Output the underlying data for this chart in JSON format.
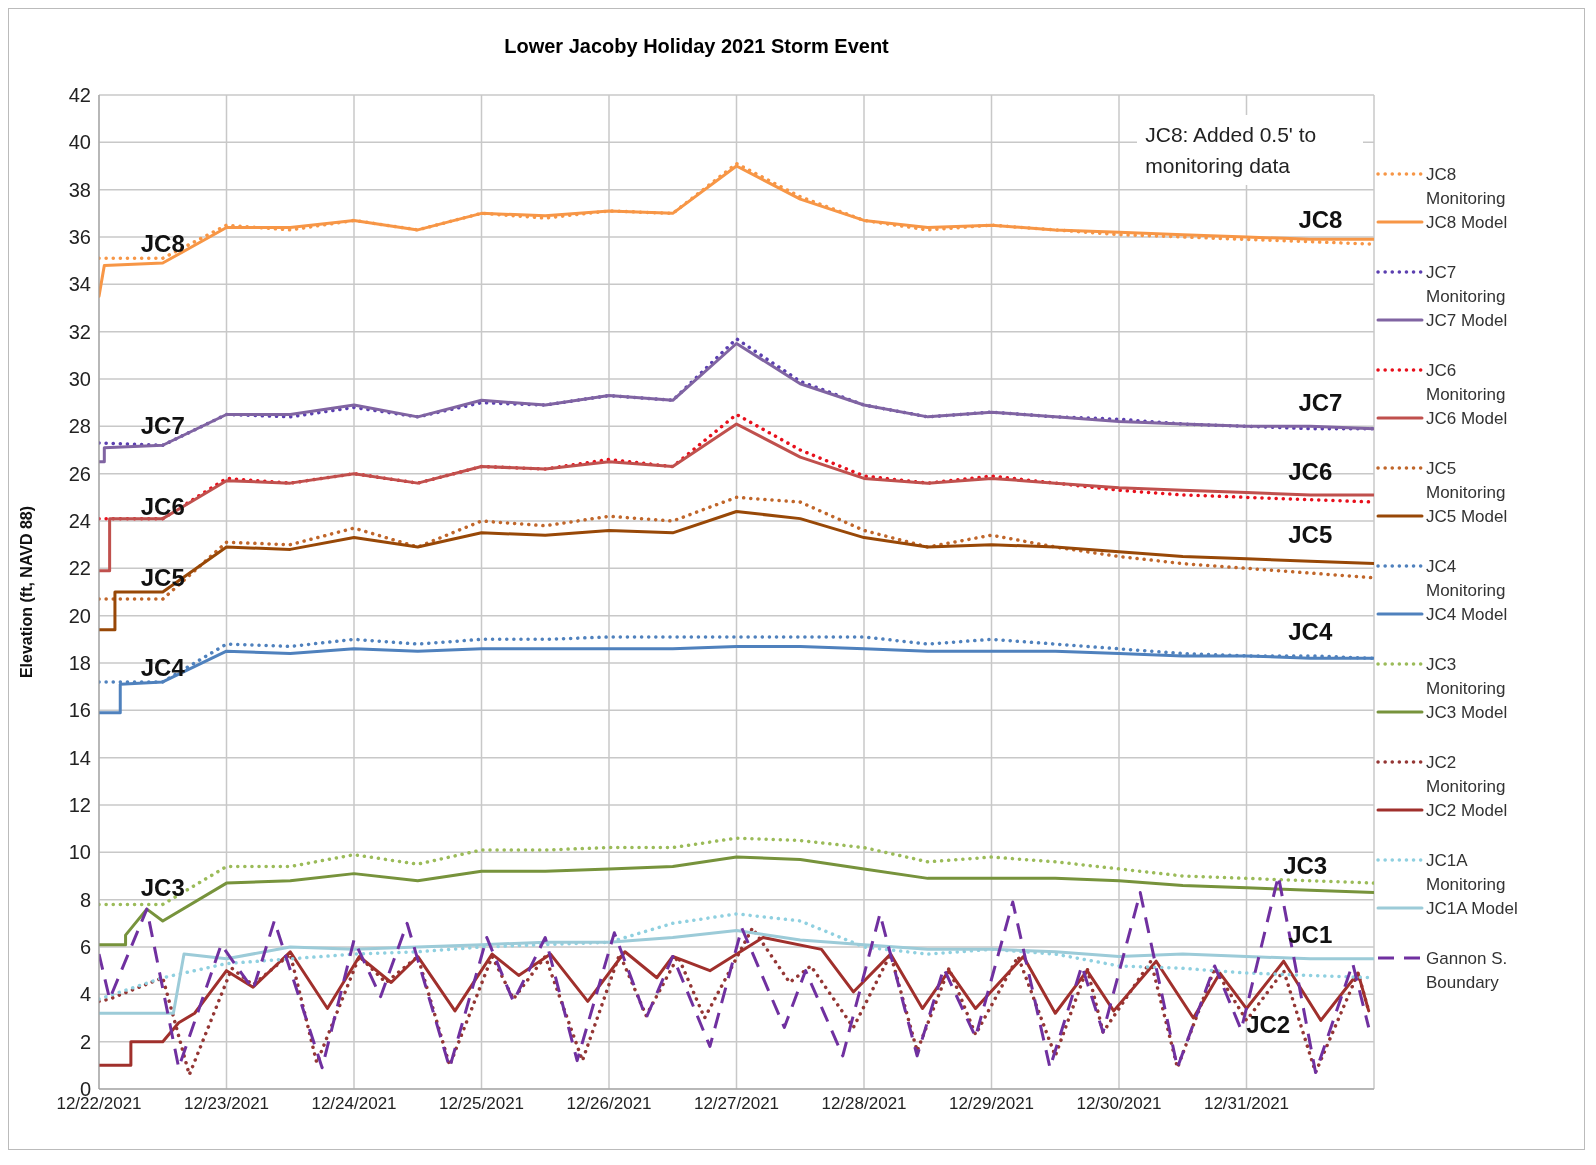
{
  "chart_data": {
    "type": "line",
    "title": "Lower Jacoby Holiday 2021 Storm Event",
    "ylabel": "Elevation (ft, NAVD 88)",
    "x": [
      "2021-12-22T00:00",
      "2021-12-22T12:00",
      "2021-12-23T00:00",
      "2021-12-23T12:00",
      "2021-12-24T00:00",
      "2021-12-24T12:00",
      "2021-12-25T00:00",
      "2021-12-25T12:00",
      "2021-12-26T00:00",
      "2021-12-26T12:00",
      "2021-12-27T00:00",
      "2021-12-27T12:00",
      "2021-12-28T00:00",
      "2021-12-28T12:00",
      "2021-12-29T00:00",
      "2021-12-29T12:00",
      "2021-12-30T00:00",
      "2021-12-30T12:00",
      "2021-12-31T00:00",
      "2021-12-31T12:00",
      "2022-01-01T00:00"
    ],
    "xlim": [
      "2021-12-22T00:00",
      "2022-01-01T00:00"
    ],
    "xticks": [
      {
        "value": "2021-12-22",
        "label": "12/22/2021"
      },
      {
        "value": "2021-12-23",
        "label": "12/23/2021"
      },
      {
        "value": "2021-12-24",
        "label": "12/24/2021"
      },
      {
        "value": "2021-12-25",
        "label": "12/25/2021"
      },
      {
        "value": "2021-12-26",
        "label": "12/26/2021"
      },
      {
        "value": "2021-12-27",
        "label": "12/27/2021"
      },
      {
        "value": "2021-12-28",
        "label": "12/28/2021"
      },
      {
        "value": "2021-12-29",
        "label": "12/29/2021"
      },
      {
        "value": "2021-12-30",
        "label": "12/30/2021"
      },
      {
        "value": "2021-12-31",
        "label": "12/31/2021"
      }
    ],
    "ylim": [
      0,
      42
    ],
    "yticks": [
      0,
      2,
      4,
      6,
      8,
      10,
      12,
      14,
      16,
      18,
      20,
      22,
      24,
      26,
      28,
      30,
      32,
      34,
      36,
      38,
      40,
      42
    ],
    "grid": true,
    "legend": "right",
    "marker": "none",
    "series": [
      {
        "name": "JC8 Monitoring",
        "color": "#f79646",
        "line_style": "dotted",
        "values": [
          35.1,
          35.1,
          36.5,
          36.3,
          36.7,
          36.3,
          37.0,
          36.8,
          37.1,
          37.0,
          39.1,
          37.7,
          36.7,
          36.3,
          36.5,
          36.3,
          36.1,
          36.0,
          35.9,
          35.8,
          35.7
        ]
      },
      {
        "name": "JC8 Model",
        "color": "#f79646",
        "line_style": "solid",
        "x": [
          "2021-12-22T00:00",
          "2021-12-22T01:00",
          "2021-12-22T12:00",
          "2021-12-23T00:00",
          "2021-12-23T12:00",
          "2021-12-24T00:00",
          "2021-12-24T12:00",
          "2021-12-25T00:00",
          "2021-12-25T12:00",
          "2021-12-26T00:00",
          "2021-12-26T12:00",
          "2021-12-27T00:00",
          "2021-12-27T12:00",
          "2021-12-28T00:00",
          "2021-12-28T12:00",
          "2021-12-29T00:00",
          "2021-12-29T12:00",
          "2021-12-30T00:00",
          "2021-12-30T12:00",
          "2021-12-31T00:00",
          "2021-12-31T12:00",
          "2022-01-01T00:00"
        ],
        "values": [
          33.5,
          34.8,
          34.9,
          36.4,
          36.4,
          36.7,
          36.3,
          37.0,
          36.9,
          37.1,
          37.0,
          39.0,
          37.6,
          36.7,
          36.4,
          36.5,
          36.3,
          36.2,
          36.1,
          36.0,
          35.9,
          35.9
        ]
      },
      {
        "name": "JC7 Monitoring",
        "color": "#5b3fb0",
        "line_style": "dotted",
        "values": [
          27.3,
          27.2,
          28.5,
          28.4,
          28.8,
          28.4,
          29.0,
          28.9,
          29.3,
          29.1,
          31.7,
          29.9,
          28.9,
          28.4,
          28.6,
          28.4,
          28.3,
          28.1,
          28.0,
          27.9,
          27.9
        ]
      },
      {
        "name": "JC7 Model",
        "color": "#8064a2",
        "line_style": "solid",
        "x": [
          "2021-12-22T00:00",
          "2021-12-22T01:00",
          "2021-12-22T01:00",
          "2021-12-22T12:00",
          "2021-12-23T00:00",
          "2021-12-23T12:00",
          "2021-12-24T00:00",
          "2021-12-24T12:00",
          "2021-12-25T00:00",
          "2021-12-25T12:00",
          "2021-12-26T00:00",
          "2021-12-26T12:00",
          "2021-12-27T00:00",
          "2021-12-27T12:00",
          "2021-12-28T00:00",
          "2021-12-28T12:00",
          "2021-12-29T00:00",
          "2021-12-29T12:00",
          "2021-12-30T00:00",
          "2021-12-30T12:00",
          "2021-12-31T00:00",
          "2021-12-31T12:00",
          "2022-01-01T00:00"
        ],
        "values": [
          26.5,
          26.5,
          27.1,
          27.2,
          28.5,
          28.5,
          28.9,
          28.4,
          29.1,
          28.9,
          29.3,
          29.1,
          31.5,
          29.8,
          28.9,
          28.4,
          28.6,
          28.4,
          28.2,
          28.1,
          28.0,
          28.0,
          27.9
        ]
      },
      {
        "name": "JC6 Monitoring",
        "color": "#e8101c",
        "line_style": "dotted",
        "values": [
          24.1,
          24.1,
          25.8,
          25.6,
          26.0,
          25.6,
          26.3,
          26.2,
          26.6,
          26.3,
          28.5,
          27.0,
          25.9,
          25.6,
          25.9,
          25.6,
          25.3,
          25.1,
          25.0,
          24.9,
          24.8
        ]
      },
      {
        "name": "JC6 Model",
        "color": "#c0504d",
        "line_style": "solid",
        "x": [
          "2021-12-22T00:00",
          "2021-12-22T02:00",
          "2021-12-22T02:00",
          "2021-12-22T12:00",
          "2021-12-23T00:00",
          "2021-12-23T12:00",
          "2021-12-24T00:00",
          "2021-12-24T12:00",
          "2021-12-25T00:00",
          "2021-12-25T12:00",
          "2021-12-26T00:00",
          "2021-12-26T12:00",
          "2021-12-27T00:00",
          "2021-12-27T12:00",
          "2021-12-28T00:00",
          "2021-12-28T12:00",
          "2021-12-29T00:00",
          "2021-12-29T12:00",
          "2021-12-30T00:00",
          "2021-12-30T12:00",
          "2021-12-31T00:00",
          "2021-12-31T12:00",
          "2022-01-01T00:00"
        ],
        "values": [
          21.9,
          21.9,
          24.1,
          24.1,
          25.7,
          25.6,
          26.0,
          25.6,
          26.3,
          26.2,
          26.5,
          26.3,
          28.1,
          26.7,
          25.8,
          25.6,
          25.8,
          25.6,
          25.4,
          25.3,
          25.2,
          25.1,
          25.1
        ]
      },
      {
        "name": "JC5 Monitoring",
        "color": "#c0662a",
        "line_style": "dotted",
        "values": [
          20.7,
          20.7,
          23.1,
          23.0,
          23.7,
          22.9,
          24.0,
          23.8,
          24.2,
          24.0,
          25.0,
          24.8,
          23.6,
          22.9,
          23.4,
          22.9,
          22.5,
          22.2,
          22.0,
          21.8,
          21.6
        ]
      },
      {
        "name": "JC5 Model",
        "color": "#984807",
        "line_style": "solid",
        "x": [
          "2021-12-22T00:00",
          "2021-12-22T03:00",
          "2021-12-22T03:00",
          "2021-12-22T12:00",
          "2021-12-23T00:00",
          "2021-12-23T12:00",
          "2021-12-24T00:00",
          "2021-12-24T12:00",
          "2021-12-25T00:00",
          "2021-12-25T12:00",
          "2021-12-26T00:00",
          "2021-12-26T12:00",
          "2021-12-27T00:00",
          "2021-12-27T12:00",
          "2021-12-28T00:00",
          "2021-12-28T12:00",
          "2021-12-29T00:00",
          "2021-12-29T12:00",
          "2021-12-30T00:00",
          "2021-12-30T12:00",
          "2021-12-31T00:00",
          "2021-12-31T12:00",
          "2022-01-01T00:00"
        ],
        "values": [
          19.4,
          19.4,
          21.0,
          21.0,
          22.9,
          22.8,
          23.3,
          22.9,
          23.5,
          23.4,
          23.6,
          23.5,
          24.4,
          24.1,
          23.3,
          22.9,
          23.0,
          22.9,
          22.7,
          22.5,
          22.4,
          22.3,
          22.2
        ]
      },
      {
        "name": "JC4 Monitoring",
        "color": "#4f81bd",
        "line_style": "dotted",
        "values": [
          17.2,
          17.2,
          18.8,
          18.7,
          19.0,
          18.8,
          19.0,
          19.0,
          19.1,
          19.1,
          19.1,
          19.1,
          19.1,
          18.8,
          19.0,
          18.8,
          18.6,
          18.4,
          18.3,
          18.3,
          18.2
        ]
      },
      {
        "name": "JC4 Model",
        "color": "#4f81bd",
        "line_style": "solid",
        "x": [
          "2021-12-22T00:00",
          "2021-12-22T04:00",
          "2021-12-22T04:00",
          "2021-12-22T12:00",
          "2021-12-23T00:00",
          "2021-12-23T12:00",
          "2021-12-24T00:00",
          "2021-12-24T12:00",
          "2021-12-25T00:00",
          "2021-12-25T12:00",
          "2021-12-26T00:00",
          "2021-12-26T12:00",
          "2021-12-27T00:00",
          "2021-12-27T12:00",
          "2021-12-28T00:00",
          "2021-12-28T12:00",
          "2021-12-29T00:00",
          "2021-12-29T12:00",
          "2021-12-30T00:00",
          "2021-12-30T12:00",
          "2021-12-31T00:00",
          "2021-12-31T12:00",
          "2022-01-01T00:00"
        ],
        "values": [
          15.9,
          15.9,
          17.1,
          17.2,
          18.5,
          18.4,
          18.6,
          18.5,
          18.6,
          18.6,
          18.6,
          18.6,
          18.7,
          18.7,
          18.6,
          18.5,
          18.5,
          18.5,
          18.4,
          18.3,
          18.3,
          18.2,
          18.2
        ]
      },
      {
        "name": "JC3 Monitoring",
        "color": "#9bbb59",
        "line_style": "dotted",
        "values": [
          7.8,
          7.8,
          9.4,
          9.4,
          9.9,
          9.5,
          10.1,
          10.1,
          10.2,
          10.2,
          10.6,
          10.5,
          10.2,
          9.6,
          9.8,
          9.6,
          9.3,
          9.0,
          8.9,
          8.8,
          8.7
        ]
      },
      {
        "name": "JC3 Model",
        "color": "#77933c",
        "line_style": "solid",
        "x": [
          "2021-12-22T00:00",
          "2021-12-22T05:00",
          "2021-12-22T05:00",
          "2021-12-22T09:00",
          "2021-12-22T12:00",
          "2021-12-23T00:00",
          "2021-12-23T12:00",
          "2021-12-24T00:00",
          "2021-12-24T12:00",
          "2021-12-25T00:00",
          "2021-12-25T12:00",
          "2021-12-26T00:00",
          "2021-12-26T12:00",
          "2021-12-27T00:00",
          "2021-12-27T12:00",
          "2021-12-28T00:00",
          "2021-12-28T12:00",
          "2021-12-29T00:00",
          "2021-12-29T12:00",
          "2021-12-30T00:00",
          "2021-12-30T12:00",
          "2021-12-31T00:00",
          "2021-12-31T12:00",
          "2022-01-01T00:00"
        ],
        "values": [
          6.1,
          6.1,
          6.5,
          7.6,
          7.1,
          8.7,
          8.8,
          9.1,
          8.8,
          9.2,
          9.2,
          9.3,
          9.4,
          9.8,
          9.7,
          9.3,
          8.9,
          8.9,
          8.9,
          8.8,
          8.6,
          8.5,
          8.4,
          8.3
        ]
      },
      {
        "name": "JC2 Monitoring",
        "color": "#943634",
        "line_style": "dotted",
        "x": [
          "2021-12-22T00:00",
          "2021-12-22T02:00",
          "2021-12-22T12:00",
          "2021-12-22T17:00",
          "2021-12-23T01:00",
          "2021-12-23T05:00",
          "2021-12-23T12:00",
          "2021-12-23T17:00",
          "2021-12-24T01:00",
          "2021-12-24T06:00",
          "2021-12-24T12:00",
          "2021-12-24T18:00",
          "2021-12-25T02:00",
          "2021-12-25T06:00",
          "2021-12-25T12:00",
          "2021-12-25T19:00",
          "2021-12-26T02:00",
          "2021-12-26T07:00",
          "2021-12-26T13:00",
          "2021-12-26T18:00",
          "2021-12-27T03:00",
          "2021-12-27T10:00",
          "2021-12-27T14:00",
          "2021-12-27T22:00",
          "2021-12-28T05:00",
          "2021-12-28T10:00",
          "2021-12-28T16:00",
          "2021-12-28T21:00",
          "2021-12-29T05:00",
          "2021-12-29T12:00",
          "2021-12-29T18:00",
          "2021-12-29T21:00",
          "2021-12-30T06:00",
          "2021-12-30T11:00",
          "2021-12-30T18:00",
          "2021-12-31T00:00",
          "2021-12-31T07:00",
          "2021-12-31T13:00",
          "2021-12-31T21:00",
          "2021-12-31T23:00"
        ],
        "values": [
          3.7,
          3.8,
          4.7,
          0.6,
          5.1,
          4.4,
          5.7,
          1.1,
          5.6,
          4.5,
          5.6,
          1.0,
          5.6,
          3.8,
          5.6,
          1.2,
          5.7,
          3.1,
          5.6,
          3.0,
          6.8,
          4.5,
          5.2,
          2.6,
          5.7,
          1.6,
          5.1,
          2.3,
          5.6,
          1.4,
          5.1,
          2.4,
          5.4,
          0.9,
          5.1,
          2.9,
          5.0,
          0.7,
          4.9,
          3.3
        ]
      },
      {
        "name": "JC2 Model",
        "color": "#a0302c",
        "line_style": "solid",
        "x": [
          "2021-12-22T00:00",
          "2021-12-22T06:00",
          "2021-12-22T06:00",
          "2021-12-22T12:00",
          "2021-12-22T15:00",
          "2021-12-22T18:00",
          "2021-12-23T00:00",
          "2021-12-23T05:00",
          "2021-12-23T12:00",
          "2021-12-23T19:00",
          "2021-12-24T01:00",
          "2021-12-24T07:00",
          "2021-12-24T12:00",
          "2021-12-24T19:00",
          "2021-12-25T02:00",
          "2021-12-25T07:00",
          "2021-12-25T13:00",
          "2021-12-25T20:00",
          "2021-12-26T03:00",
          "2021-12-26T09:00",
          "2021-12-26T12:00",
          "2021-12-26T19:00",
          "2021-12-27T05:00",
          "2021-12-27T16:00",
          "2021-12-27T22:00",
          "2021-12-28T05:00",
          "2021-12-28T11:00",
          "2021-12-28T16:00",
          "2021-12-28T21:00",
          "2021-12-29T06:00",
          "2021-12-29T12:00",
          "2021-12-29T18:00",
          "2021-12-29T23:00",
          "2021-12-30T07:00",
          "2021-12-30T14:00",
          "2021-12-30T19:00",
          "2021-12-31T00:00",
          "2021-12-31T07:00",
          "2021-12-31T14:00",
          "2021-12-31T21:00",
          "2021-12-31T23:00"
        ],
        "values": [
          1.0,
          1.0,
          2.0,
          2.0,
          2.8,
          3.2,
          5.0,
          4.3,
          5.8,
          3.4,
          5.6,
          4.5,
          5.6,
          3.3,
          5.7,
          4.8,
          5.7,
          3.7,
          5.8,
          4.7,
          5.6,
          5.0,
          6.4,
          5.9,
          4.1,
          5.7,
          3.4,
          5.0,
          3.4,
          5.6,
          3.2,
          5.0,
          3.3,
          5.4,
          3.0,
          4.9,
          3.4,
          5.4,
          2.9,
          4.9,
          3.3
        ]
      },
      {
        "name": "JC1A Monitoring",
        "color": "#8fd0e0",
        "line_style": "dotted",
        "values": [
          3.8,
          4.7,
          5.3,
          5.5,
          5.7,
          5.8,
          6.0,
          6.1,
          6.2,
          7.0,
          7.4,
          7.1,
          6.0,
          5.7,
          5.9,
          5.7,
          5.2,
          5.1,
          4.9,
          4.8,
          4.7
        ]
      },
      {
        "name": "JC1A Model",
        "color": "#9ccbd8",
        "line_style": "solid",
        "x": [
          "2021-12-22T00:00",
          "2021-12-22T12:00",
          "2021-12-22T14:00",
          "2021-12-22T16:00",
          "2021-12-23T00:00",
          "2021-12-23T12:00",
          "2021-12-24T00:00",
          "2021-12-24T12:00",
          "2021-12-25T00:00",
          "2021-12-25T12:00",
          "2021-12-26T00:00",
          "2021-12-26T12:00",
          "2021-12-27T00:00",
          "2021-12-27T12:00",
          "2021-12-28T00:00",
          "2021-12-28T12:00",
          "2021-12-29T00:00",
          "2021-12-29T12:00",
          "2021-12-30T00:00",
          "2021-12-30T12:00",
          "2021-12-31T00:00",
          "2021-12-31T12:00",
          "2022-01-01T00:00"
        ],
        "values": [
          3.2,
          3.2,
          3.2,
          5.7,
          5.5,
          6.0,
          5.9,
          6.0,
          6.1,
          6.2,
          6.2,
          6.4,
          6.7,
          6.3,
          6.1,
          5.9,
          5.9,
          5.8,
          5.6,
          5.7,
          5.6,
          5.5,
          5.5
        ]
      },
      {
        "name": "Gannon S. Boundary",
        "color": "#7030a0",
        "line_style": "dashed",
        "x": [
          "2021-12-22T00:00",
          "2021-12-22T02:00",
          "2021-12-22T09:00",
          "2021-12-22T15:00",
          "2021-12-22T23:00",
          "2021-12-23T05:00",
          "2021-12-23T09:00",
          "2021-12-23T18:00",
          "2021-12-24T00:00",
          "2021-12-24T05:00",
          "2021-12-24T10:00",
          "2021-12-24T18:00",
          "2021-12-25T01:00",
          "2021-12-25T06:00",
          "2021-12-25T12:00",
          "2021-12-25T18:00",
          "2021-12-26T01:00",
          "2021-12-26T07:00",
          "2021-12-26T12:00",
          "2021-12-26T19:00",
          "2021-12-27T01:00",
          "2021-12-27T09:00",
          "2021-12-27T13:00",
          "2021-12-27T20:00",
          "2021-12-28T03:00",
          "2021-12-28T10:00",
          "2021-12-28T15:00",
          "2021-12-28T21:00",
          "2021-12-29T04:00",
          "2021-12-29T11:00",
          "2021-12-29T17:00",
          "2021-12-29T21:00",
          "2021-12-30T04:00",
          "2021-12-30T11:00",
          "2021-12-30T18:00",
          "2021-12-30T23:00",
          "2021-12-31T06:00",
          "2021-12-31T13:00",
          "2021-12-31T20:00",
          "2021-12-31T23:00"
        ],
        "values": [
          5.7,
          3.8,
          7.6,
          0.9,
          6.1,
          4.2,
          7.1,
          0.9,
          6.3,
          3.9,
          7.0,
          0.9,
          6.4,
          3.7,
          6.4,
          1.2,
          6.6,
          3.0,
          5.6,
          1.8,
          6.8,
          2.6,
          5.0,
          1.4,
          7.4,
          1.4,
          5.1,
          2.2,
          7.9,
          0.9,
          5.2,
          2.4,
          8.3,
          0.9,
          5.2,
          2.5,
          9.0,
          0.7,
          5.3,
          2.6
        ]
      }
    ],
    "annotations": [
      "JC8: Added 0.5' to monitoring data",
      "JC8",
      "JC8",
      "JC7",
      "JC7",
      "JC6",
      "JC6",
      "JC5",
      "JC5",
      "JC4",
      "JC4",
      "JC3",
      "JC3",
      "JC1",
      "JC2"
    ]
  }
}
